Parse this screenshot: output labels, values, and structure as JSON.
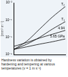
{
  "chart_data": {
    "type": "line",
    "y_label": "[mm³ m⁻¹]",
    "caption": "Hardness variation is obtained by hardening and tempering at various temperatures (v = 1 m s⁻¹)",
    "x": [
      0,
      1,
      2,
      3,
      4
    ],
    "series": [
      {
        "name": "T₂",
        "color": "#000000",
        "values": [
          2e-06,
          6e-06,
          3e-05,
          0.00015,
          0.0006
        ]
      },
      {
        "name": "T₁",
        "color": "#000000",
        "values": [
          2e-06,
          4e-06,
          1e-05,
          3e-05,
          8e-05
        ]
      },
      {
        "name": "4.94",
        "color": "#000000",
        "values": [
          3e-06,
          5e-06,
          9e-06,
          1.5e-05,
          2.5e-05
        ]
      },
      {
        "name": "5.65 GPa",
        "color": "#000000",
        "values": [
          2e-06,
          2.8e-06,
          4e-06,
          5.5e-06,
          8e-06
        ]
      }
    ],
    "xlim": [
      0,
      4
    ],
    "xticks": [
      0,
      1,
      2,
      3,
      4
    ],
    "ylim": [
      1e-06,
      0.001
    ],
    "yticks": [
      {
        "value": 1e-06,
        "label": "10⁻⁶"
      },
      {
        "value": 1e-05,
        "label": "10⁻⁵"
      },
      {
        "value": 0.0001,
        "label": "10⁻⁴"
      },
      {
        "value": 0.001,
        "label": "10⁻³"
      }
    ],
    "log": "y",
    "grid": false,
    "tick_labels": "y"
  }
}
